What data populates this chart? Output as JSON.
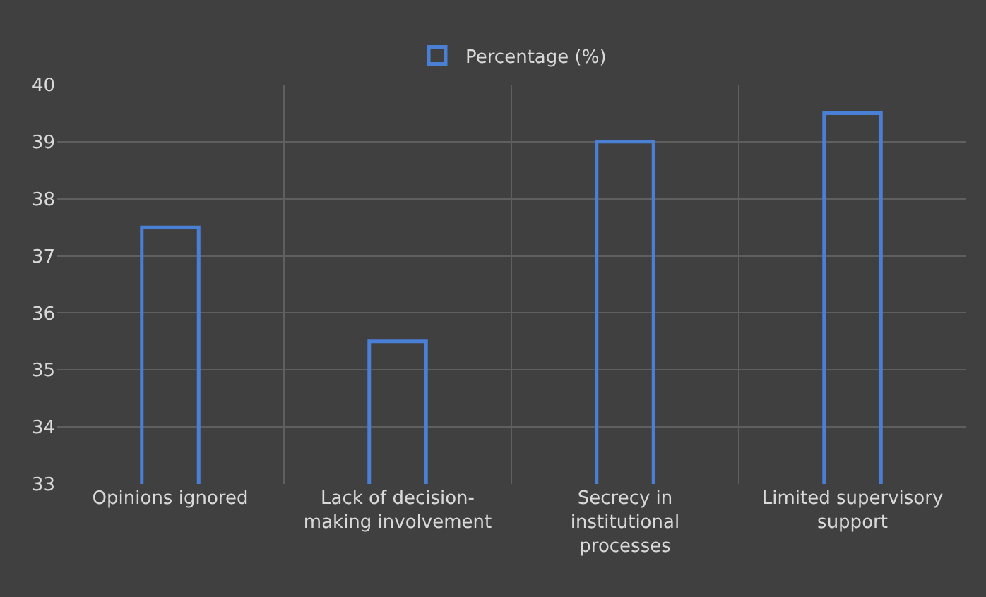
{
  "chart_data": {
    "type": "bar",
    "categories": [
      "Opinions ignored",
      "Lack of decision-making involvement",
      "Secrecy in institutional processes",
      "Limited supervisory support"
    ],
    "series": [
      {
        "name": "Percentage (%)",
        "color": "#4a7fd6",
        "values": [
          37.5,
          35.5,
          39,
          39.5
        ]
      }
    ],
    "ylim": [
      33,
      40
    ],
    "yticks": [
      33,
      34,
      35,
      36,
      37,
      38,
      39,
      40
    ],
    "grid": true,
    "legend": "top"
  }
}
